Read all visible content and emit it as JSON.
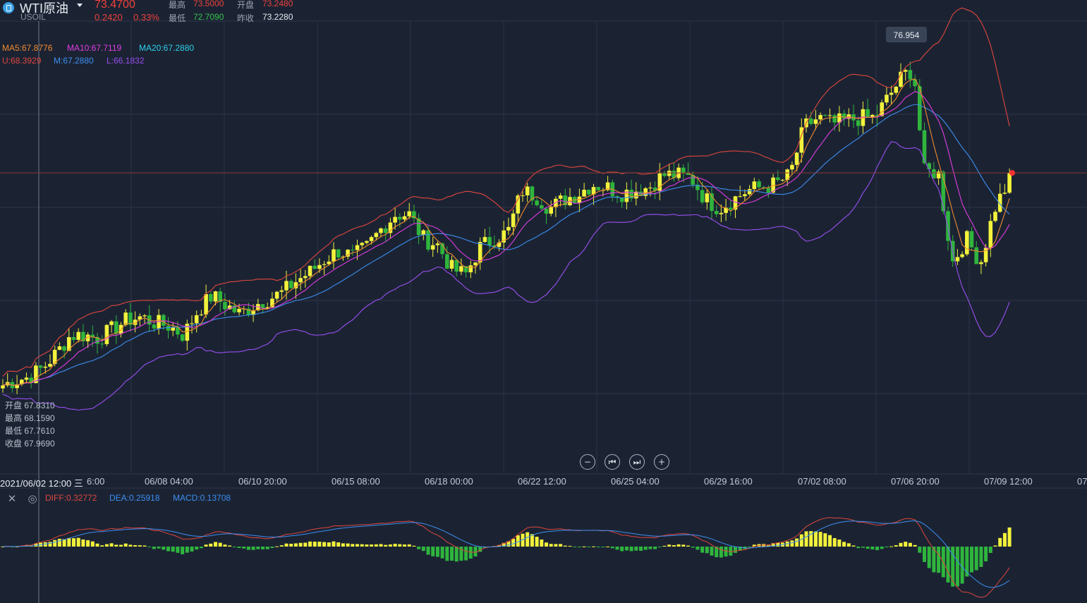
{
  "header": {
    "symbol": "WTI原油",
    "ticker": "USOIL",
    "last_price": "73.4700",
    "change": "0.2420",
    "change_pct": "0.33%",
    "high_label": "最高",
    "high": "73.5000",
    "open_label": "开盘",
    "open": "73.2480",
    "low_label": "最低",
    "low": "72.7090",
    "prev_close_label": "昨收",
    "prev_close": "73.2280"
  },
  "indicators": {
    "ma5": "MA5:67.8776",
    "ma10": "MA10:67.7119",
    "ma20": "MA20:67.2880",
    "boll_u": "U:68.3929",
    "boll_m": "M:67.2880",
    "boll_l": "L:66.1832"
  },
  "cursor_ohlc": {
    "open": "开盘 67.8310",
    "high": "最高 68.1590",
    "low": "最低 67.7610",
    "close": "收盘 67.9690",
    "time": "2021/06/02 12:00 三"
  },
  "peak_label": "76.954",
  "controls": {
    "zoom_out": "−",
    "prev": "⏮",
    "next": "⏭",
    "zoom_in": "+"
  },
  "macd": {
    "diff": "DIFF:0.32772",
    "dea": "DEA:0.25918",
    "macd": "MACD:0.13708"
  },
  "colors": {
    "background": "#1b2333",
    "up": "#f2f23c",
    "down": "#2fb53d",
    "ma5": "#f0892f",
    "ma10": "#e03ce0",
    "ma20": "#2ed0e8",
    "boll_u": "#e0463c",
    "boll_m": "#3c8ef0",
    "boll_l": "#9a4ef0",
    "diff": "#e0463c",
    "dea": "#3c8ef0"
  },
  "chart_data": {
    "type": "candlestick",
    "x_ticks": [
      "06/08 04:00",
      "06/10 20:00",
      "06/15 08:00",
      "06/18 00:00",
      "06/22 12:00",
      "06/25 04:00",
      "06/29 16:00",
      "07/02 08:00",
      "07/06 20:00",
      "07/09 12:00"
    ],
    "x_tick_partial_left": "6:00",
    "x_tick_partial_right": "07",
    "ylim": [
      63.0,
      78.0
    ],
    "series": [],
    "close_path": [
      [
        0,
        65.9
      ],
      [
        20,
        66.1
      ],
      [
        40,
        66.2
      ],
      [
        60,
        66.5
      ],
      [
        80,
        67.0
      ],
      [
        100,
        67.6
      ],
      [
        120,
        67.6
      ],
      [
        140,
        67.5
      ],
      [
        160,
        67.8
      ],
      [
        180,
        68.1
      ],
      [
        200,
        68.2
      ],
      [
        220,
        68.0
      ],
      [
        240,
        67.9
      ],
      [
        260,
        67.6
      ],
      [
        280,
        68.4
      ],
      [
        300,
        68.9
      ],
      [
        320,
        68.6
      ],
      [
        340,
        68.3
      ],
      [
        360,
        68.6
      ],
      [
        380,
        68.8
      ],
      [
        400,
        69.0
      ],
      [
        420,
        69.4
      ],
      [
        440,
        69.7
      ],
      [
        460,
        70.1
      ],
      [
        480,
        70.4
      ],
      [
        500,
        70.2
      ],
      [
        520,
        70.5
      ],
      [
        540,
        71.1
      ],
      [
        560,
        71.6
      ],
      [
        580,
        71.6
      ],
      [
        600,
        70.8
      ],
      [
        620,
        70.6
      ],
      [
        640,
        69.8
      ],
      [
        660,
        69.6
      ],
      [
        680,
        70.5
      ],
      [
        700,
        70.8
      ],
      [
        720,
        71.0
      ],
      [
        740,
        72.4
      ],
      [
        760,
        72.2
      ],
      [
        780,
        71.8
      ],
      [
        800,
        72.1
      ],
      [
        820,
        72.3
      ],
      [
        840,
        72.6
      ],
      [
        860,
        72.5
      ],
      [
        880,
        72.3
      ],
      [
        900,
        72.4
      ],
      [
        920,
        72.5
      ],
      [
        940,
        72.9
      ],
      [
        960,
        72.9
      ],
      [
        980,
        72.8
      ],
      [
        1000,
        72.1
      ],
      [
        1020,
        71.8
      ],
      [
        1040,
        72.1
      ],
      [
        1060,
        72.4
      ],
      [
        1080,
        72.5
      ],
      [
        1100,
        72.6
      ],
      [
        1120,
        72.9
      ],
      [
        1140,
        74.5
      ],
      [
        1160,
        74.8
      ],
      [
        1180,
        74.6
      ],
      [
        1200,
        74.7
      ],
      [
        1220,
        74.8
      ],
      [
        1240,
        74.8
      ],
      [
        1260,
        75.5
      ],
      [
        1280,
        76.2
      ],
      [
        1295,
        76.4
      ],
      [
        1310,
        73.0
      ],
      [
        1330,
        73.0
      ],
      [
        1350,
        70.0
      ],
      [
        1370,
        70.8
      ],
      [
        1390,
        70.0
      ],
      [
        1410,
        71.8
      ],
      [
        1435,
        72.9
      ]
    ],
    "macd_hist_range": [
      -0.6,
      0.6
    ]
  }
}
